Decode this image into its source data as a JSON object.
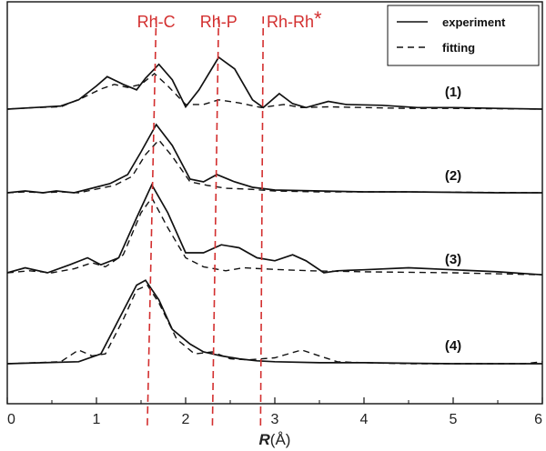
{
  "chart_data": {
    "type": "line",
    "xlabel": {
      "symbol": "R",
      "unit": "(Å)"
    },
    "xlim": [
      0,
      6
    ],
    "xticks": [
      "0",
      "1",
      "2",
      "3",
      "4",
      "5",
      "6"
    ],
    "legend": {
      "placement": "top-right",
      "entries": [
        {
          "label": "experiment",
          "style": "solid"
        },
        {
          "label": "fitting",
          "style": "dashed"
        }
      ]
    },
    "reference_lines": [
      {
        "label": "Rh-C",
        "star": "",
        "x_top": 1.67,
        "x_bottom": 1.57,
        "color": "#d32f2f"
      },
      {
        "label": "Rh-P",
        "star": "",
        "x_top": 2.37,
        "x_bottom": 2.3,
        "color": "#d32f2f"
      },
      {
        "label": "Rh-Rh",
        "star": "*",
        "x_top": 2.87,
        "x_bottom": 2.84,
        "color": "#d32f2f"
      }
    ],
    "traces": [
      {
        "label": "(1)",
        "baseline": 0,
        "experiment": [
          [
            0,
            0
          ],
          [
            0.3,
            0.02
          ],
          [
            0.6,
            0.04
          ],
          [
            0.8,
            0.12
          ],
          [
            1.0,
            0.3
          ],
          [
            1.12,
            0.42
          ],
          [
            1.3,
            0.32
          ],
          [
            1.45,
            0.25
          ],
          [
            1.55,
            0.4
          ],
          [
            1.7,
            0.58
          ],
          [
            1.85,
            0.38
          ],
          [
            2.0,
            0.03
          ],
          [
            2.15,
            0.25
          ],
          [
            2.37,
            0.67
          ],
          [
            2.55,
            0.52
          ],
          [
            2.75,
            0.12
          ],
          [
            2.87,
            0.02
          ],
          [
            3.05,
            0.2
          ],
          [
            3.2,
            0.07
          ],
          [
            3.35,
            0.02
          ],
          [
            3.6,
            0.1
          ],
          [
            3.8,
            0.06
          ],
          [
            4.2,
            0.05
          ],
          [
            4.6,
            0.02
          ],
          [
            5.0,
            0.02
          ],
          [
            5.5,
            0.01
          ],
          [
            6.0,
            0
          ]
        ],
        "fitting": [
          [
            0,
            0
          ],
          [
            0.3,
            0.02
          ],
          [
            0.6,
            0.03
          ],
          [
            0.85,
            0.15
          ],
          [
            1.05,
            0.26
          ],
          [
            1.2,
            0.32
          ],
          [
            1.35,
            0.28
          ],
          [
            1.5,
            0.32
          ],
          [
            1.65,
            0.46
          ],
          [
            1.8,
            0.3
          ],
          [
            2.0,
            0.06
          ],
          [
            2.2,
            0.06
          ],
          [
            2.37,
            0.12
          ],
          [
            2.6,
            0.08
          ],
          [
            2.85,
            0.02
          ],
          [
            3.1,
            0.06
          ],
          [
            3.3,
            0.02
          ],
          [
            3.6,
            0.03
          ],
          [
            4.0,
            0.02
          ],
          [
            4.5,
            0.01
          ],
          [
            5.0,
            0.01
          ],
          [
            6.0,
            0
          ]
        ]
      },
      {
        "label": "(2)",
        "baseline": 0,
        "experiment": [
          [
            0,
            0
          ],
          [
            0.2,
            0.02
          ],
          [
            0.4,
            0
          ],
          [
            0.55,
            0.02
          ],
          [
            0.75,
            0
          ],
          [
            0.95,
            0.05
          ],
          [
            1.15,
            0.1
          ],
          [
            1.35,
            0.2
          ],
          [
            1.5,
            0.45
          ],
          [
            1.67,
            0.75
          ],
          [
            1.85,
            0.52
          ],
          [
            2.05,
            0.15
          ],
          [
            2.2,
            0.12
          ],
          [
            2.35,
            0.2
          ],
          [
            2.55,
            0.12
          ],
          [
            2.75,
            0.06
          ],
          [
            3.0,
            0.03
          ],
          [
            3.5,
            0.02
          ],
          [
            4.0,
            0.01
          ],
          [
            4.5,
            0.01
          ],
          [
            5.0,
            0.005
          ],
          [
            5.5,
            0
          ],
          [
            6.0,
            0
          ]
        ],
        "fitting": [
          [
            0,
            0
          ],
          [
            0.2,
            0.01
          ],
          [
            0.4,
            0
          ],
          [
            0.6,
            0.01
          ],
          [
            0.8,
            0
          ],
          [
            1.0,
            0.04
          ],
          [
            1.2,
            0.08
          ],
          [
            1.4,
            0.18
          ],
          [
            1.55,
            0.42
          ],
          [
            1.7,
            0.58
          ],
          [
            1.85,
            0.4
          ],
          [
            2.05,
            0.12
          ],
          [
            2.25,
            0.08
          ],
          [
            2.45,
            0.05
          ],
          [
            2.7,
            0.04
          ],
          [
            3.0,
            0.02
          ],
          [
            3.5,
            0.01
          ],
          [
            4.5,
            0.01
          ],
          [
            6.0,
            0
          ]
        ]
      },
      {
        "label": "(3)",
        "baseline": 0,
        "experiment": [
          [
            0,
            0
          ],
          [
            0.2,
            0.05
          ],
          [
            0.45,
            0
          ],
          [
            0.7,
            0.08
          ],
          [
            0.9,
            0.15
          ],
          [
            1.05,
            0.08
          ],
          [
            1.25,
            0.15
          ],
          [
            1.45,
            0.55
          ],
          [
            1.62,
            0.88
          ],
          [
            1.8,
            0.6
          ],
          [
            2.0,
            0.2
          ],
          [
            2.2,
            0.2
          ],
          [
            2.4,
            0.28
          ],
          [
            2.6,
            0.25
          ],
          [
            2.8,
            0.15
          ],
          [
            3.0,
            0.12
          ],
          [
            3.2,
            0.18
          ],
          [
            3.35,
            0.12
          ],
          [
            3.55,
            0
          ],
          [
            3.7,
            0.02
          ],
          [
            4.0,
            0.03
          ],
          [
            4.5,
            0.05
          ],
          [
            5.0,
            0.03
          ],
          [
            5.5,
            0.01
          ],
          [
            6.0,
            -0.02
          ]
        ],
        "fitting": [
          [
            0,
            0
          ],
          [
            0.25,
            0.02
          ],
          [
            0.5,
            0
          ],
          [
            0.75,
            0.04
          ],
          [
            0.95,
            0.1
          ],
          [
            1.1,
            0.06
          ],
          [
            1.3,
            0.18
          ],
          [
            1.5,
            0.6
          ],
          [
            1.62,
            0.75
          ],
          [
            1.8,
            0.45
          ],
          [
            2.0,
            0.15
          ],
          [
            2.2,
            0.06
          ],
          [
            2.45,
            0.02
          ],
          [
            2.65,
            0.05
          ],
          [
            2.85,
            0.04
          ],
          [
            3.1,
            0.03
          ],
          [
            3.4,
            0.02
          ],
          [
            4.0,
            0.01
          ],
          [
            5.0,
            0
          ],
          [
            6.0,
            -0.02
          ]
        ]
      },
      {
        "label": "(4)",
        "baseline": 0,
        "experiment": [
          [
            0,
            0
          ],
          [
            0.4,
            0.01
          ],
          [
            0.8,
            0.02
          ],
          [
            1.05,
            0.1
          ],
          [
            1.25,
            0.45
          ],
          [
            1.45,
            0.8
          ],
          [
            1.55,
            0.85
          ],
          [
            1.7,
            0.65
          ],
          [
            1.85,
            0.35
          ],
          [
            2.05,
            0.2
          ],
          [
            2.2,
            0.12
          ],
          [
            2.4,
            0.08
          ],
          [
            2.6,
            0.05
          ],
          [
            2.8,
            0.03
          ],
          [
            3.0,
            0.02
          ],
          [
            3.5,
            0.01
          ],
          [
            4.0,
            0.01
          ],
          [
            4.5,
            0.005
          ],
          [
            5.0,
            0
          ],
          [
            5.5,
            0
          ],
          [
            6.0,
            0
          ]
        ],
        "fitting": [
          [
            0,
            0
          ],
          [
            0.3,
            0.01
          ],
          [
            0.6,
            0.02
          ],
          [
            0.8,
            0.14
          ],
          [
            0.95,
            0.08
          ],
          [
            1.1,
            0.1
          ],
          [
            1.3,
            0.45
          ],
          [
            1.45,
            0.75
          ],
          [
            1.57,
            0.8
          ],
          [
            1.7,
            0.62
          ],
          [
            1.9,
            0.25
          ],
          [
            2.1,
            0.1
          ],
          [
            2.3,
            0.12
          ],
          [
            2.5,
            0.05
          ],
          [
            2.7,
            0.04
          ],
          [
            3.0,
            0.06
          ],
          [
            3.3,
            0.14
          ],
          [
            3.5,
            0.08
          ],
          [
            3.7,
            0.02
          ],
          [
            4.0,
            0.01
          ],
          [
            4.5,
            0
          ],
          [
            5.0,
            0
          ],
          [
            5.8,
            0
          ],
          [
            6.0,
            0.02
          ]
        ]
      }
    ]
  }
}
